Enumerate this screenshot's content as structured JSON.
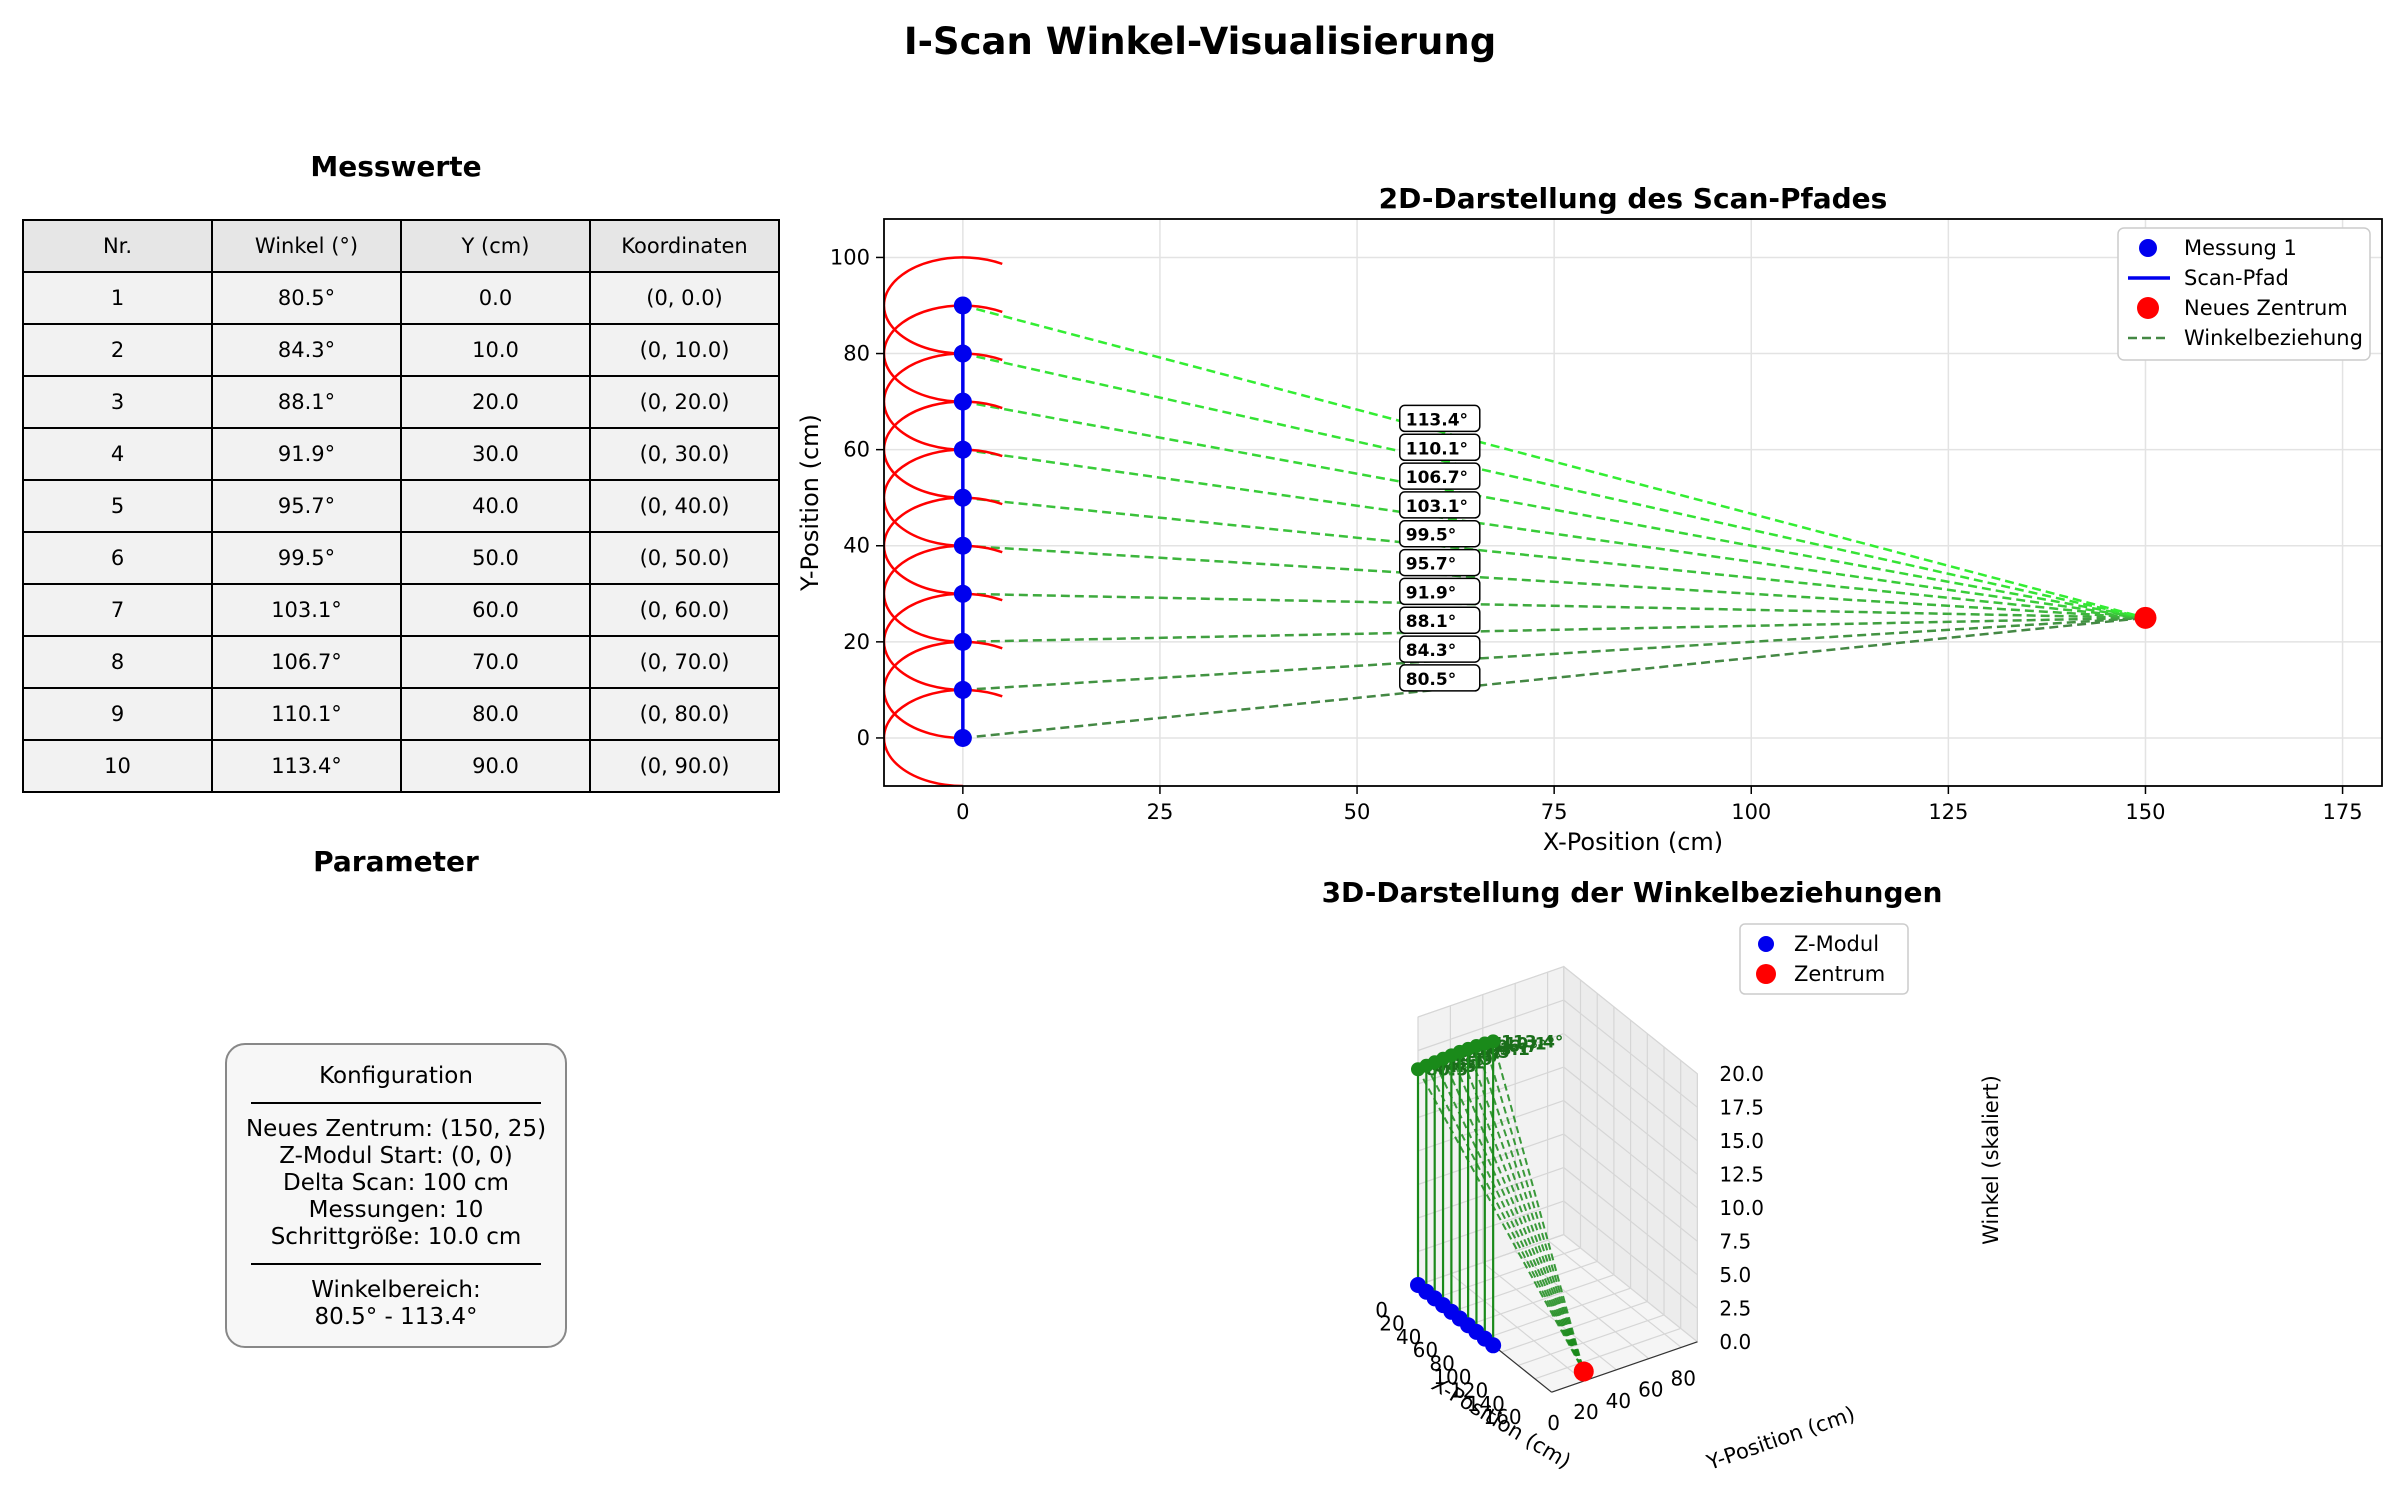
{
  "title": "I-Scan Winkel-Visualisierung",
  "table": {
    "title": "Messwerte",
    "columns": [
      "Nr.",
      "Winkel (°)",
      "Y (cm)",
      "Koordinaten"
    ],
    "rows": [
      [
        "1",
        "80.5°",
        "0.0",
        "(0, 0.0)"
      ],
      [
        "2",
        "84.3°",
        "10.0",
        "(0, 10.0)"
      ],
      [
        "3",
        "88.1°",
        "20.0",
        "(0, 20.0)"
      ],
      [
        "4",
        "91.9°",
        "30.0",
        "(0, 30.0)"
      ],
      [
        "5",
        "95.7°",
        "40.0",
        "(0, 40.0)"
      ],
      [
        "6",
        "99.5°",
        "50.0",
        "(0, 50.0)"
      ],
      [
        "7",
        "103.1°",
        "60.0",
        "(0, 60.0)"
      ],
      [
        "8",
        "106.7°",
        "70.0",
        "(0, 70.0)"
      ],
      [
        "9",
        "110.1°",
        "80.0",
        "(0, 80.0)"
      ],
      [
        "10",
        "113.4°",
        "90.0",
        "(0, 90.0)"
      ]
    ]
  },
  "parameter": {
    "title": "Parameter",
    "box_title": "Konfiguration",
    "lines": [
      "Neues Zentrum: (150, 25)",
      "Z-Modul Start: (0, 0)",
      "Delta Scan: 100 cm",
      "Messungen: 10",
      "Schrittgröße: 10.0 cm"
    ],
    "range_label": "Winkelbereich:",
    "range_value": "80.5° - 113.4°"
  },
  "chart_data": [
    {
      "type": "line",
      "title": "2D-Darstellung des Scan-Pfades",
      "xlabel": "X-Position (cm)",
      "ylabel": "Y-Position (cm)",
      "xlim": [
        -10,
        180
      ],
      "ylim": [
        -10,
        108
      ],
      "xticks": [
        0,
        25,
        50,
        75,
        100,
        125,
        150,
        175
      ],
      "yticks": [
        0,
        20,
        40,
        60,
        80,
        100
      ],
      "grid": true,
      "legend_position": "top-right",
      "legend": [
        "Messung 1",
        "Scan-Pfad",
        "Neues Zentrum",
        "Winkelbeziehung"
      ],
      "points": [
        {
          "x": 0,
          "y": 0,
          "angle": 80.5,
          "label": "80.5°"
        },
        {
          "x": 0,
          "y": 10,
          "angle": 84.3,
          "label": "84.3°"
        },
        {
          "x": 0,
          "y": 20,
          "angle": 88.1,
          "label": "88.1°"
        },
        {
          "x": 0,
          "y": 30,
          "angle": 91.9,
          "label": "91.9°"
        },
        {
          "x": 0,
          "y": 40,
          "angle": 95.7,
          "label": "95.7°"
        },
        {
          "x": 0,
          "y": 50,
          "angle": 99.5,
          "label": "99.5°"
        },
        {
          "x": 0,
          "y": 60,
          "angle": 103.1,
          "label": "103.1°"
        },
        {
          "x": 0,
          "y": 70,
          "angle": 106.7,
          "label": "106.7°"
        },
        {
          "x": 0,
          "y": 80,
          "angle": 110.1,
          "label": "110.1°"
        },
        {
          "x": 0,
          "y": 90,
          "angle": 113.4,
          "label": "113.4°"
        }
      ],
      "center": {
        "x": 150,
        "y": 25
      },
      "arc_radius": 10,
      "colors": {
        "points": "#0000ee",
        "path": "#0000ee",
        "center": "#ff0000",
        "arcs": "#ff0000",
        "lines_start": "#448844",
        "lines_end": "#33ee33"
      }
    },
    {
      "type": "scatter",
      "title": "3D-Darstellung der Winkelbeziehungen",
      "xlabel": "X-Position (cm)",
      "ylabel": "Y-Position (cm)",
      "zlabel": "Winkel (skaliert)",
      "xticks": [
        0,
        20,
        40,
        60,
        80,
        100,
        120,
        140,
        160
      ],
      "yticks": [
        0,
        20,
        40,
        60,
        80
      ],
      "zticks": [
        "0.0",
        "2.5",
        "5.0",
        "7.5",
        "10.0",
        "12.5",
        "15.0",
        "17.5",
        "20.0"
      ],
      "legend": [
        "Z-Modul",
        "Zentrum"
      ],
      "legend_position": "top-left",
      "z_values": [
        16.1,
        16.86,
        17.62,
        18.38,
        19.14,
        19.9,
        20.62,
        21.34,
        22.02,
        22.68
      ],
      "colors": {
        "modul": "#0000ee",
        "zentrum": "#ff0000",
        "stems": "#1a8a1a"
      }
    }
  ]
}
